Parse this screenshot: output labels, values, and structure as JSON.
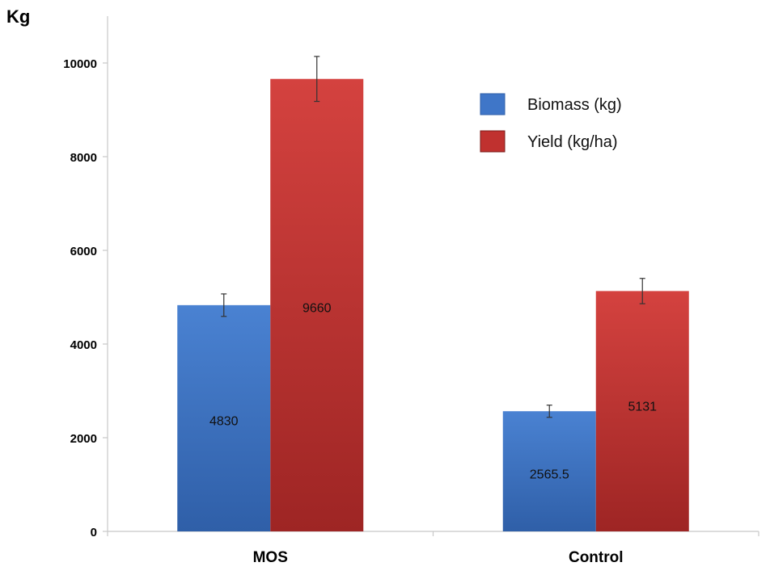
{
  "chart_data": {
    "type": "bar",
    "title": "",
    "ylabel": "Kg",
    "xlabel": "",
    "categories": [
      "MOS",
      "Control"
    ],
    "ylim": [
      0,
      11000
    ],
    "yticks": [
      0,
      2000,
      4000,
      6000,
      8000,
      10000
    ],
    "ytick_labels": [
      "0",
      "2000",
      "4000",
      "6000",
      "8000",
      "10000"
    ],
    "grid": false,
    "legend_position": "top-right",
    "series": [
      {
        "name": "Biomass (kg)",
        "color": "#3f76c8",
        "values": [
          4830,
          2565.5
        ],
        "errors": [
          240,
          130
        ],
        "value_labels": [
          "4830",
          "2565.5"
        ]
      },
      {
        "name": "Yield (kg/ha)",
        "color": "#c0312f",
        "values": [
          9660,
          5131
        ],
        "errors": [
          480,
          270
        ],
        "value_labels": [
          "9660",
          "5131"
        ]
      }
    ]
  }
}
